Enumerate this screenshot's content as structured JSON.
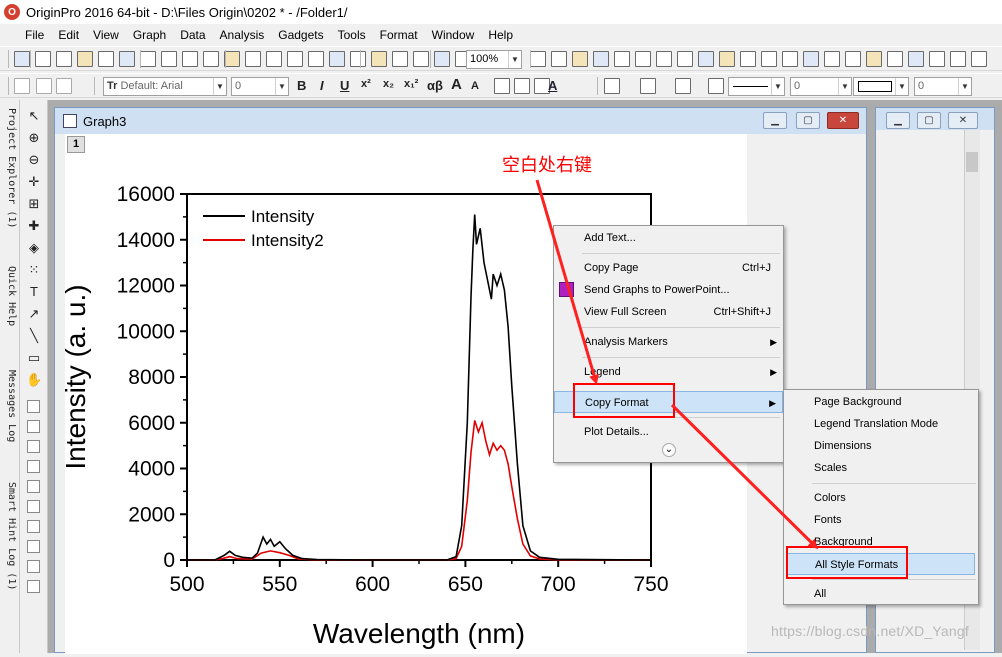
{
  "app": {
    "icon_letter": "O",
    "title": "OriginPro 2016 64-bit - D:\\Files Origin\\0202 * - /Folder1/"
  },
  "menubar": [
    "File",
    "Edit",
    "View",
    "Graph",
    "Data",
    "Analysis",
    "Gadgets",
    "Tools",
    "Format",
    "Window",
    "Help"
  ],
  "toolbar1": {
    "zoom": "100%"
  },
  "toolbar2": {
    "font_name": "Default: Arial",
    "font_size": "0",
    "glyphs": [
      "B",
      "I",
      "U",
      "x²",
      "x₂",
      "x₁²",
      "αβ",
      "A",
      "A"
    ],
    "line_value": "0",
    "fill_value": "0"
  },
  "left_dock": {
    "tabs": [
      "Project Explorer (1)",
      "Quick Help",
      "Messages Log",
      "Smart Hint Log (1)"
    ]
  },
  "tools": [
    "pointer-icon",
    "zoom-in-icon",
    "zoom-out-icon",
    "crosshair-icon",
    "scale-icon",
    "screen-reader-icon",
    "data-reader-icon",
    "mask-icon",
    "text-icon",
    "arrow-icon",
    "line-icon",
    "rectangle-icon",
    "hand-icon"
  ],
  "graph_window": {
    "title": "Graph3",
    "layer": "1"
  },
  "chart_data": {
    "type": "line",
    "xlabel": "Wavelength (nm)",
    "ylabel": "Intensity (a. u.)",
    "xlim": [
      500,
      750
    ],
    "ylim": [
      0,
      16000
    ],
    "x_ticks": [
      "500",
      "550",
      "600",
      "650",
      "700",
      "750"
    ],
    "y_ticks": [
      "0",
      "2000",
      "4000",
      "6000",
      "8000",
      "10000",
      "12000",
      "14000",
      "16000"
    ],
    "legend_position": "top-left",
    "series": [
      {
        "name": "Intensity",
        "color": "#000000",
        "points": [
          [
            500,
            0
          ],
          [
            515,
            0
          ],
          [
            520,
            200
          ],
          [
            523,
            380
          ],
          [
            526,
            200
          ],
          [
            530,
            120
          ],
          [
            535,
            80
          ],
          [
            538,
            300
          ],
          [
            541,
            1000
          ],
          [
            543,
            700
          ],
          [
            545,
            900
          ],
          [
            547,
            600
          ],
          [
            550,
            800
          ],
          [
            553,
            500
          ],
          [
            557,
            200
          ],
          [
            562,
            60
          ],
          [
            570,
            20
          ],
          [
            600,
            0
          ],
          [
            640,
            0
          ],
          [
            645,
            150
          ],
          [
            648,
            1500
          ],
          [
            651,
            6000
          ],
          [
            653,
            11500
          ],
          [
            654,
            13500
          ],
          [
            655,
            15100
          ],
          [
            656,
            13800
          ],
          [
            658,
            14500
          ],
          [
            660,
            13000
          ],
          [
            662,
            12200
          ],
          [
            664,
            11400
          ],
          [
            665,
            12500
          ],
          [
            667,
            12000
          ],
          [
            669,
            12500
          ],
          [
            671,
            11800
          ],
          [
            673,
            10200
          ],
          [
            675,
            7600
          ],
          [
            678,
            4200
          ],
          [
            681,
            1500
          ],
          [
            685,
            400
          ],
          [
            690,
            120
          ],
          [
            700,
            30
          ],
          [
            750,
            0
          ]
        ]
      },
      {
        "name": "Intensity2",
        "color": "#e00000",
        "points": [
          [
            500,
            0
          ],
          [
            515,
            0
          ],
          [
            520,
            80
          ],
          [
            523,
            150
          ],
          [
            527,
            60
          ],
          [
            535,
            40
          ],
          [
            540,
            300
          ],
          [
            545,
            400
          ],
          [
            550,
            320
          ],
          [
            555,
            200
          ],
          [
            560,
            50
          ],
          [
            570,
            10
          ],
          [
            600,
            0
          ],
          [
            640,
            0
          ],
          [
            645,
            60
          ],
          [
            648,
            600
          ],
          [
            651,
            2600
          ],
          [
            653,
            4700
          ],
          [
            655,
            6100
          ],
          [
            657,
            5600
          ],
          [
            659,
            6000
          ],
          [
            661,
            5200
          ],
          [
            663,
            4600
          ],
          [
            665,
            5100
          ],
          [
            667,
            4800
          ],
          [
            669,
            5000
          ],
          [
            671,
            4800
          ],
          [
            673,
            4200
          ],
          [
            675,
            3200
          ],
          [
            678,
            1800
          ],
          [
            681,
            700
          ],
          [
            685,
            180
          ],
          [
            690,
            50
          ],
          [
            700,
            10
          ],
          [
            750,
            0
          ]
        ]
      }
    ]
  },
  "context_menu": {
    "items": [
      {
        "label": "Add Text...",
        "shortcut": "",
        "submenu": false
      },
      {
        "label": "Copy Page",
        "shortcut": "Ctrl+J",
        "submenu": false
      },
      {
        "label": "Send Graphs to PowerPoint...",
        "shortcut": "",
        "submenu": false
      },
      {
        "label": "View Full Screen",
        "shortcut": "Ctrl+Shift+J",
        "submenu": false
      },
      {
        "label": "Analysis Markers",
        "shortcut": "",
        "submenu": true
      },
      {
        "label": "Legend",
        "shortcut": "",
        "submenu": true
      },
      {
        "label": "Copy Format",
        "shortcut": "",
        "submenu": true
      },
      {
        "label": "Plot Details...",
        "shortcut": "",
        "submenu": false
      }
    ],
    "arrow": "▶",
    "more": "⌄"
  },
  "submenu": {
    "items": [
      "Page Background",
      "Legend Translation Mode",
      "Dimensions",
      "Scales",
      "Colors",
      "Fonts",
      "Background",
      "All Style Formats",
      "All"
    ]
  },
  "annotation": "空白处右键",
  "watermark": "https://blog.csdn.net/XD_Yangf"
}
